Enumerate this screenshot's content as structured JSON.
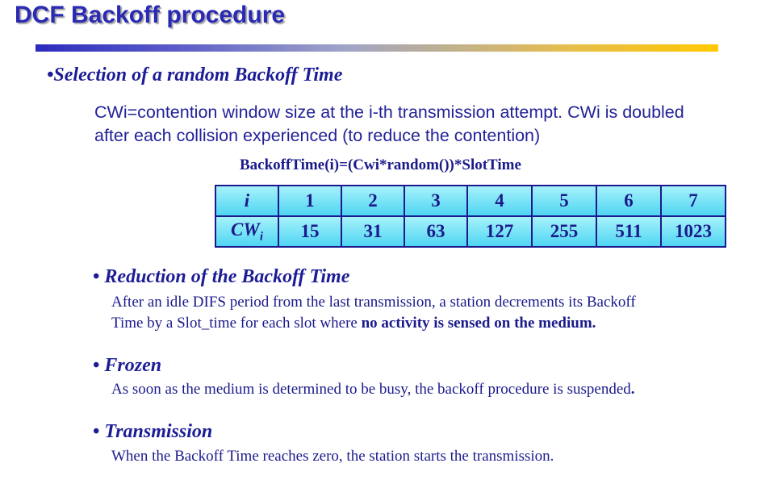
{
  "title": "DCF Backoff procedure",
  "section": {
    "bullet": "•",
    "heading": "Selection of a random Backoff Time",
    "paragraph": "CWi=contention window size at the i-th transmission attempt. CWi is doubled after each collision experienced (to reduce the contention)",
    "formula": "BackoffTime(i)=(Cwi*random())*SlotTime"
  },
  "table": {
    "row1_label": "i",
    "row2_label": "CW",
    "row2_label_sub": "i",
    "i_values": [
      "1",
      "2",
      "3",
      "4",
      "5",
      "6",
      "7"
    ],
    "cw_values": [
      "15",
      "31",
      "63",
      "127",
      "255",
      "511",
      "1023"
    ]
  },
  "bullets": [
    {
      "marker": "•",
      "heading": "Reduction of the Backoff Time",
      "text": "After an idle DIFS period from the last transmission, a station decrements its Backoff Time by a Slot_time for each slot where ",
      "text_bold": "no activity is sensed on the medium."
    },
    {
      "marker": "•",
      "heading": "Frozen",
      "text": "As soon as  the medium is determined to be busy, the backoff procedure is suspended",
      "text_bold": "."
    },
    {
      "marker": "•",
      "heading": "Transmission",
      "text": "When the Backoff Time reaches zero, the station starts the transmission."
    }
  ]
}
